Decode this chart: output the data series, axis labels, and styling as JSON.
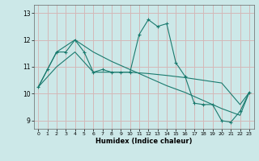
{
  "xlabel": "Humidex (Indice chaleur)",
  "background_color": "#cce8e8",
  "grid_color": "#d4b8b8",
  "line_color": "#1a7a6e",
  "xlim": [
    -0.5,
    23.5
  ],
  "ylim": [
    8.7,
    13.3
  ],
  "yticks": [
    9,
    10,
    11,
    12,
    13
  ],
  "xticks": [
    0,
    1,
    2,
    3,
    4,
    5,
    6,
    7,
    8,
    9,
    10,
    11,
    12,
    13,
    14,
    15,
    16,
    17,
    18,
    19,
    20,
    21,
    22,
    23
  ],
  "series_main": [
    [
      0,
      10.25
    ],
    [
      1,
      10.9
    ],
    [
      2,
      11.55
    ],
    [
      3,
      11.55
    ],
    [
      4,
      12.0
    ],
    [
      5,
      11.55
    ],
    [
      6,
      10.8
    ],
    [
      7,
      10.9
    ],
    [
      8,
      10.8
    ],
    [
      9,
      10.8
    ],
    [
      10,
      10.8
    ],
    [
      11,
      12.2
    ],
    [
      12,
      12.75
    ],
    [
      13,
      12.5
    ],
    [
      14,
      12.6
    ],
    [
      15,
      11.15
    ],
    [
      16,
      10.65
    ],
    [
      17,
      9.65
    ],
    [
      18,
      9.6
    ],
    [
      19,
      9.6
    ],
    [
      20,
      9.0
    ],
    [
      21,
      8.95
    ],
    [
      22,
      9.35
    ],
    [
      23,
      10.05
    ]
  ],
  "series_upper": [
    [
      0,
      10.25
    ],
    [
      2,
      11.55
    ],
    [
      4,
      12.0
    ],
    [
      6,
      11.55
    ],
    [
      8,
      11.2
    ],
    [
      10,
      10.9
    ],
    [
      12,
      10.6
    ],
    [
      14,
      10.3
    ],
    [
      16,
      10.05
    ],
    [
      18,
      9.75
    ],
    [
      20,
      9.45
    ],
    [
      22,
      9.2
    ],
    [
      23,
      10.05
    ]
  ],
  "series_lower": [
    [
      0,
      10.25
    ],
    [
      2,
      11.0
    ],
    [
      4,
      11.55
    ],
    [
      6,
      10.8
    ],
    [
      8,
      10.8
    ],
    [
      10,
      10.8
    ],
    [
      12,
      10.75
    ],
    [
      14,
      10.68
    ],
    [
      16,
      10.6
    ],
    [
      18,
      10.5
    ],
    [
      20,
      10.4
    ],
    [
      22,
      9.6
    ],
    [
      23,
      10.05
    ]
  ]
}
